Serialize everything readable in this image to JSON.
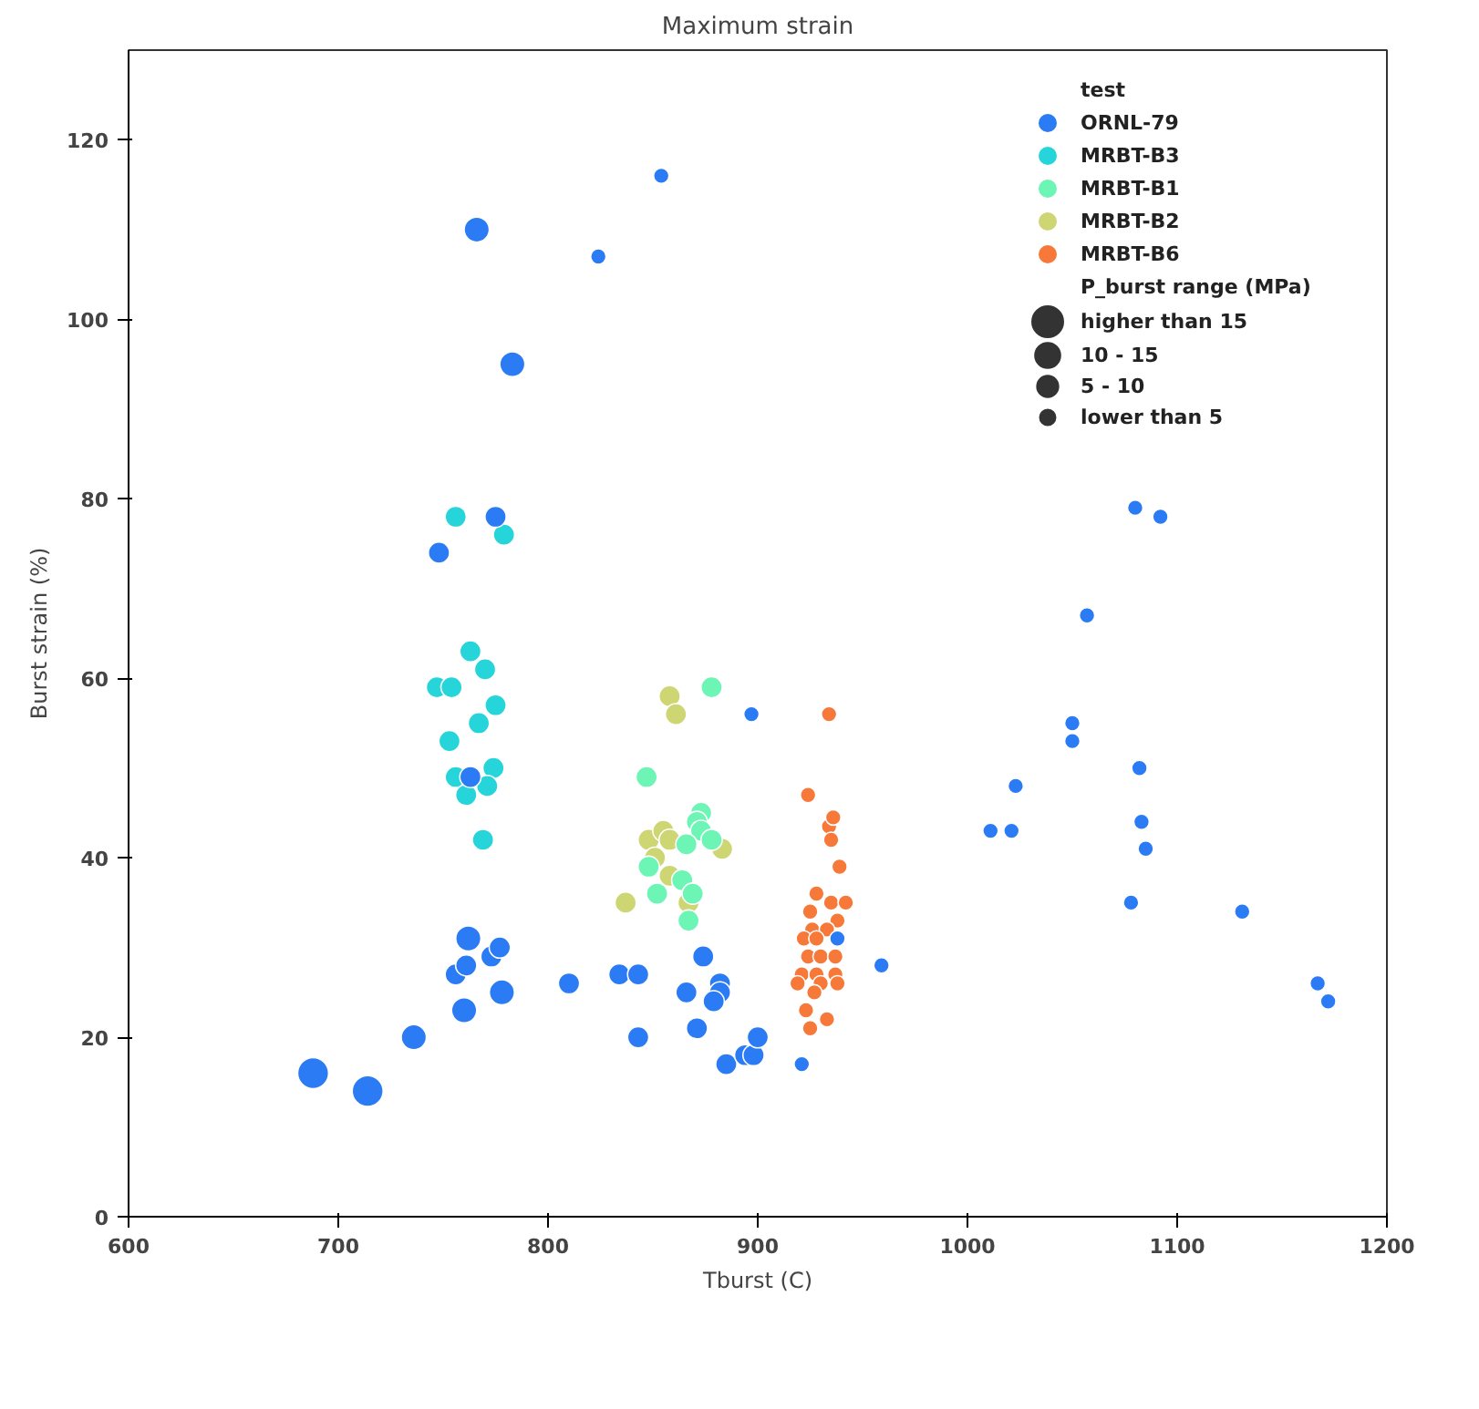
{
  "chart_data": {
    "type": "bubble",
    "title": "Maximum strain",
    "xlabel": "Tburst (C)",
    "ylabel": "Burst strain (%)",
    "legend_title": "test",
    "legend": "top right",
    "grid": false,
    "marker": "circle",
    "xlim": [
      600,
      1200
    ],
    "xticks": [
      600,
      700,
      800,
      900,
      1000,
      1100,
      1200
    ],
    "ylim": [
      0,
      130
    ],
    "yticks": [
      0,
      20,
      40,
      60,
      80,
      100,
      120
    ],
    "annotations": [
      "P_burst range (MPa)"
    ],
    "size_legend": [
      {
        "value": 1,
        "label": "higher than 15"
      },
      {
        "value": 0.66,
        "label": "10 - 15"
      },
      {
        "value": 0.47,
        "label": "5 - 10"
      },
      {
        "value": 0.25,
        "label": "lower than 5"
      }
    ],
    "series": [
      {
        "name": "ORNL-79",
        "color": "#2b7bf5",
        "x": [
          688,
          714,
          736,
          760,
          762,
          778,
          766,
          783,
          756,
          761,
          773,
          777,
          810,
          834,
          843,
          843,
          866,
          874,
          882,
          882,
          879,
          871,
          885,
          894,
          898,
          900,
          763,
          775,
          748,
          854,
          824,
          897,
          959,
          921,
          938,
          1080,
          1092,
          1057,
          1050,
          1050,
          1082,
          1023,
          1011,
          1021,
          1083,
          1085,
          1078,
          1131,
          1167,
          1172
        ],
        "values": [
          16,
          14,
          20,
          23,
          31,
          25,
          110,
          95,
          27,
          28,
          29,
          30,
          26,
          27,
          27,
          20,
          25,
          29,
          26,
          25,
          24,
          21,
          17,
          18,
          18,
          20,
          49,
          78,
          74,
          116,
          107,
          56,
          28,
          17,
          31,
          79,
          78,
          67,
          55,
          53,
          50,
          48,
          43,
          43,
          44,
          41,
          35,
          34,
          26,
          24
        ],
        "sizes": [
          1,
          1,
          0.66,
          0.66,
          0.66,
          0.66,
          0.66,
          0.66,
          0.47,
          0.47,
          0.47,
          0.47,
          0.47,
          0.47,
          0.47,
          0.47,
          0.47,
          0.47,
          0.47,
          0.47,
          0.47,
          0.47,
          0.47,
          0.47,
          0.47,
          0.47,
          0.47,
          0.47,
          0.47,
          0.25,
          0.25,
          0.25,
          0.25,
          0.25,
          0.25,
          0.25,
          0.25,
          0.25,
          0.25,
          0.25,
          0.25,
          0.25,
          0.25,
          0.25,
          0.25,
          0.25,
          0.25,
          0.25,
          0.25,
          0.25
        ]
      },
      {
        "name": "MRBT-B3",
        "color": "#25d5d9",
        "x": [
          756,
          779,
          763,
          770,
          747,
          754,
          775,
          767,
          753,
          774,
          756,
          771,
          761,
          769
        ],
        "values": [
          78,
          76,
          63,
          61,
          59,
          59,
          57,
          55,
          53,
          50,
          49,
          48,
          47,
          42
        ],
        "sizes": [
          0.47,
          0.47,
          0.47,
          0.47,
          0.47,
          0.47,
          0.47,
          0.47,
          0.47,
          0.47,
          0.47,
          0.47,
          0.47,
          0.47
        ]
      },
      {
        "name": "MRBT-B1",
        "color": "#6cf5b5",
        "x": [
          878,
          847,
          873,
          871,
          873,
          878,
          866,
          848,
          852,
          864,
          869,
          867
        ],
        "values": [
          59,
          49,
          45,
          44,
          43,
          42,
          41.5,
          39,
          36,
          37.5,
          36,
          33
        ],
        "sizes": [
          0.47,
          0.47,
          0.47,
          0.47,
          0.47,
          0.47,
          0.47,
          0.47,
          0.47,
          0.47,
          0.47,
          0.47
        ]
      },
      {
        "name": "MRBT-B2",
        "color": "#cdd672",
        "x": [
          858,
          861,
          837,
          848,
          855,
          858,
          851,
          858,
          883,
          867
        ],
        "values": [
          58,
          56,
          35,
          42,
          43,
          42,
          40,
          38,
          41,
          35
        ],
        "sizes": [
          0.47,
          0.47,
          0.47,
          0.47,
          0.47,
          0.47,
          0.47,
          0.47,
          0.47,
          0.47
        ]
      },
      {
        "name": "MRBT-B6",
        "color": "#f7793a",
        "x": [
          934,
          924,
          934,
          936,
          935,
          939,
          928,
          925,
          935,
          942,
          938,
          926,
          933,
          922,
          928,
          924,
          930,
          937,
          921,
          928,
          937,
          919,
          930,
          938,
          927,
          923,
          933,
          925
        ],
        "values": [
          56,
          47,
          43.5,
          44.5,
          42,
          39,
          36,
          34,
          35,
          35,
          33,
          32,
          32,
          31,
          31,
          29,
          29,
          29,
          27,
          27,
          27,
          26,
          26,
          26,
          25,
          23,
          22,
          21
        ],
        "sizes": [
          0.25,
          0.25,
          0.25,
          0.25,
          0.25,
          0.25,
          0.25,
          0.25,
          0.25,
          0.25,
          0.25,
          0.25,
          0.25,
          0.25,
          0.25,
          0.25,
          0.25,
          0.25,
          0.25,
          0.25,
          0.25,
          0.25,
          0.25,
          0.25,
          0.25,
          0.25,
          0.25,
          0.25
        ]
      }
    ]
  }
}
